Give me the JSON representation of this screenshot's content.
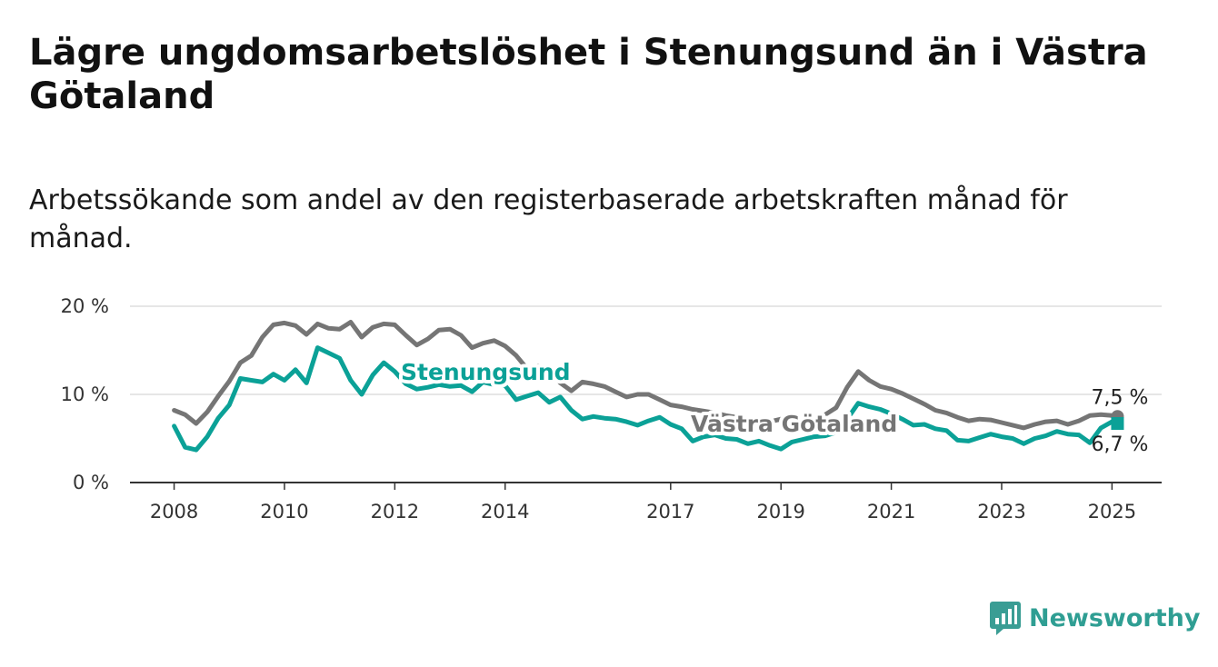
{
  "title": "Lägre ungdomsarbetslöshet i Stenungsund än i Västra Götaland",
  "subtitle": "Arbetssökande som andel av den registerbaserade arbetskraften månad för månad.",
  "brand": {
    "name": "Newsworthy",
    "color": "#2f9e93"
  },
  "chart_data": {
    "type": "line",
    "title": "Lägre ungdomsarbetslöshet i Stenungsund än i Västra Götaland",
    "xlabel": "",
    "ylabel": "",
    "ylim": [
      0,
      20
    ],
    "xlim": [
      2007.2,
      2025.9
    ],
    "grid": true,
    "y_ticks": [
      {
        "value": 0,
        "label": "0 %"
      },
      {
        "value": 10,
        "label": "10 %"
      },
      {
        "value": 20,
        "label": "20 %"
      }
    ],
    "x_ticks": [
      {
        "value": 2008,
        "label": "2008"
      },
      {
        "value": 2010,
        "label": "2010"
      },
      {
        "value": 2012,
        "label": "2012"
      },
      {
        "value": 2014,
        "label": "2014"
      },
      {
        "value": 2017,
        "label": "2017"
      },
      {
        "value": 2019,
        "label": "2019"
      },
      {
        "value": 2021,
        "label": "2021"
      },
      {
        "value": 2023,
        "label": "2023"
      },
      {
        "value": 2025,
        "label": "2025"
      }
    ],
    "series": [
      {
        "name": "Västra Götaland",
        "color": "#757575",
        "end_label": "7,5 %",
        "x": [
          2008.0,
          2008.2,
          2008.4,
          2008.6,
          2008.8,
          2009.0,
          2009.2,
          2009.4,
          2009.6,
          2009.8,
          2010.0,
          2010.2,
          2010.4,
          2010.6,
          2010.8,
          2011.0,
          2011.2,
          2011.4,
          2011.6,
          2011.8,
          2012.0,
          2012.2,
          2012.4,
          2012.6,
          2012.8,
          2013.0,
          2013.2,
          2013.4,
          2013.6,
          2013.8,
          2014.0,
          2014.2,
          2014.4,
          2014.6,
          2014.8,
          2015.0,
          2015.2,
          2015.4,
          2015.6,
          2015.8,
          2016.0,
          2016.2,
          2016.4,
          2016.6,
          2016.8,
          2017.0,
          2017.2,
          2017.4,
          2017.6,
          2017.8,
          2018.0,
          2018.2,
          2018.4,
          2018.6,
          2018.8,
          2019.0,
          2019.2,
          2019.4,
          2019.6,
          2019.8,
          2020.0,
          2020.2,
          2020.4,
          2020.6,
          2020.8,
          2021.0,
          2021.2,
          2021.4,
          2021.6,
          2021.8,
          2022.0,
          2022.2,
          2022.4,
          2022.6,
          2022.8,
          2023.0,
          2023.2,
          2023.4,
          2023.6,
          2023.8,
          2024.0,
          2024.2,
          2024.4,
          2024.6,
          2024.8,
          2025.0,
          2025.1
        ],
        "values": [
          8.2,
          7.7,
          6.7,
          8.0,
          9.8,
          11.5,
          13.6,
          14.4,
          16.5,
          17.9,
          18.1,
          17.8,
          16.8,
          18.0,
          17.5,
          17.4,
          18.2,
          16.5,
          17.6,
          18.0,
          17.9,
          16.7,
          15.6,
          16.3,
          17.3,
          17.4,
          16.7,
          15.3,
          15.8,
          16.1,
          15.5,
          14.4,
          12.9,
          13.2,
          12.7,
          11.3,
          10.4,
          11.4,
          11.2,
          10.9,
          10.3,
          9.7,
          10.0,
          10.0,
          9.4,
          8.8,
          8.6,
          8.3,
          8.1,
          7.9,
          7.6,
          7.4,
          7.1,
          7.0,
          6.9,
          7.2,
          7.1,
          7.4,
          7.3,
          7.7,
          8.5,
          10.8,
          12.6,
          11.6,
          10.9,
          10.6,
          10.1,
          9.5,
          8.9,
          8.2,
          7.9,
          7.4,
          7.0,
          7.2,
          7.1,
          6.8,
          6.5,
          6.2,
          6.6,
          6.9,
          7.0,
          6.6,
          7.0,
          7.6,
          7.7,
          7.6,
          7.5
        ]
      },
      {
        "name": "Stenungsund",
        "color": "#0ba197",
        "end_label": "6,7 %",
        "x": [
          2008.0,
          2008.2,
          2008.4,
          2008.6,
          2008.8,
          2009.0,
          2009.2,
          2009.4,
          2009.6,
          2009.8,
          2010.0,
          2010.2,
          2010.4,
          2010.6,
          2010.8,
          2011.0,
          2011.2,
          2011.4,
          2011.6,
          2011.8,
          2012.0,
          2012.2,
          2012.4,
          2012.6,
          2012.8,
          2013.0,
          2013.2,
          2013.4,
          2013.6,
          2013.8,
          2014.0,
          2014.2,
          2014.4,
          2014.6,
          2014.8,
          2015.0,
          2015.2,
          2015.4,
          2015.6,
          2015.8,
          2016.0,
          2016.2,
          2016.4,
          2016.6,
          2016.8,
          2017.0,
          2017.2,
          2017.4,
          2017.6,
          2017.8,
          2018.0,
          2018.2,
          2018.4,
          2018.6,
          2018.8,
          2019.0,
          2019.2,
          2019.4,
          2019.6,
          2019.8,
          2020.0,
          2020.2,
          2020.4,
          2020.6,
          2020.8,
          2021.0,
          2021.2,
          2021.4,
          2021.6,
          2021.8,
          2022.0,
          2022.2,
          2022.4,
          2022.6,
          2022.8,
          2023.0,
          2023.2,
          2023.4,
          2023.6,
          2023.8,
          2024.0,
          2024.2,
          2024.4,
          2024.6,
          2024.8,
          2025.0,
          2025.1
        ],
        "values": [
          6.4,
          4.0,
          3.7,
          5.2,
          7.3,
          8.8,
          11.8,
          11.6,
          11.4,
          12.3,
          11.6,
          12.8,
          11.3,
          15.3,
          14.7,
          14.1,
          11.6,
          10.0,
          12.2,
          13.6,
          12.6,
          11.2,
          10.6,
          10.8,
          11.1,
          10.9,
          11.0,
          10.3,
          11.4,
          11.1,
          11.0,
          9.4,
          9.8,
          10.2,
          9.1,
          9.7,
          8.2,
          7.2,
          7.5,
          7.3,
          7.2,
          6.9,
          6.5,
          7.0,
          7.4,
          6.6,
          6.1,
          4.7,
          5.2,
          5.4,
          5.0,
          4.9,
          4.4,
          4.7,
          4.2,
          3.8,
          4.6,
          4.9,
          5.2,
          5.3,
          5.7,
          7.2,
          9.0,
          8.6,
          8.3,
          7.8,
          7.2,
          6.5,
          6.6,
          6.1,
          5.9,
          4.8,
          4.7,
          5.1,
          5.5,
          5.2,
          5.0,
          4.4,
          5.0,
          5.3,
          5.8,
          5.5,
          5.4,
          4.5,
          6.2,
          6.9,
          6.7
        ]
      }
    ]
  }
}
